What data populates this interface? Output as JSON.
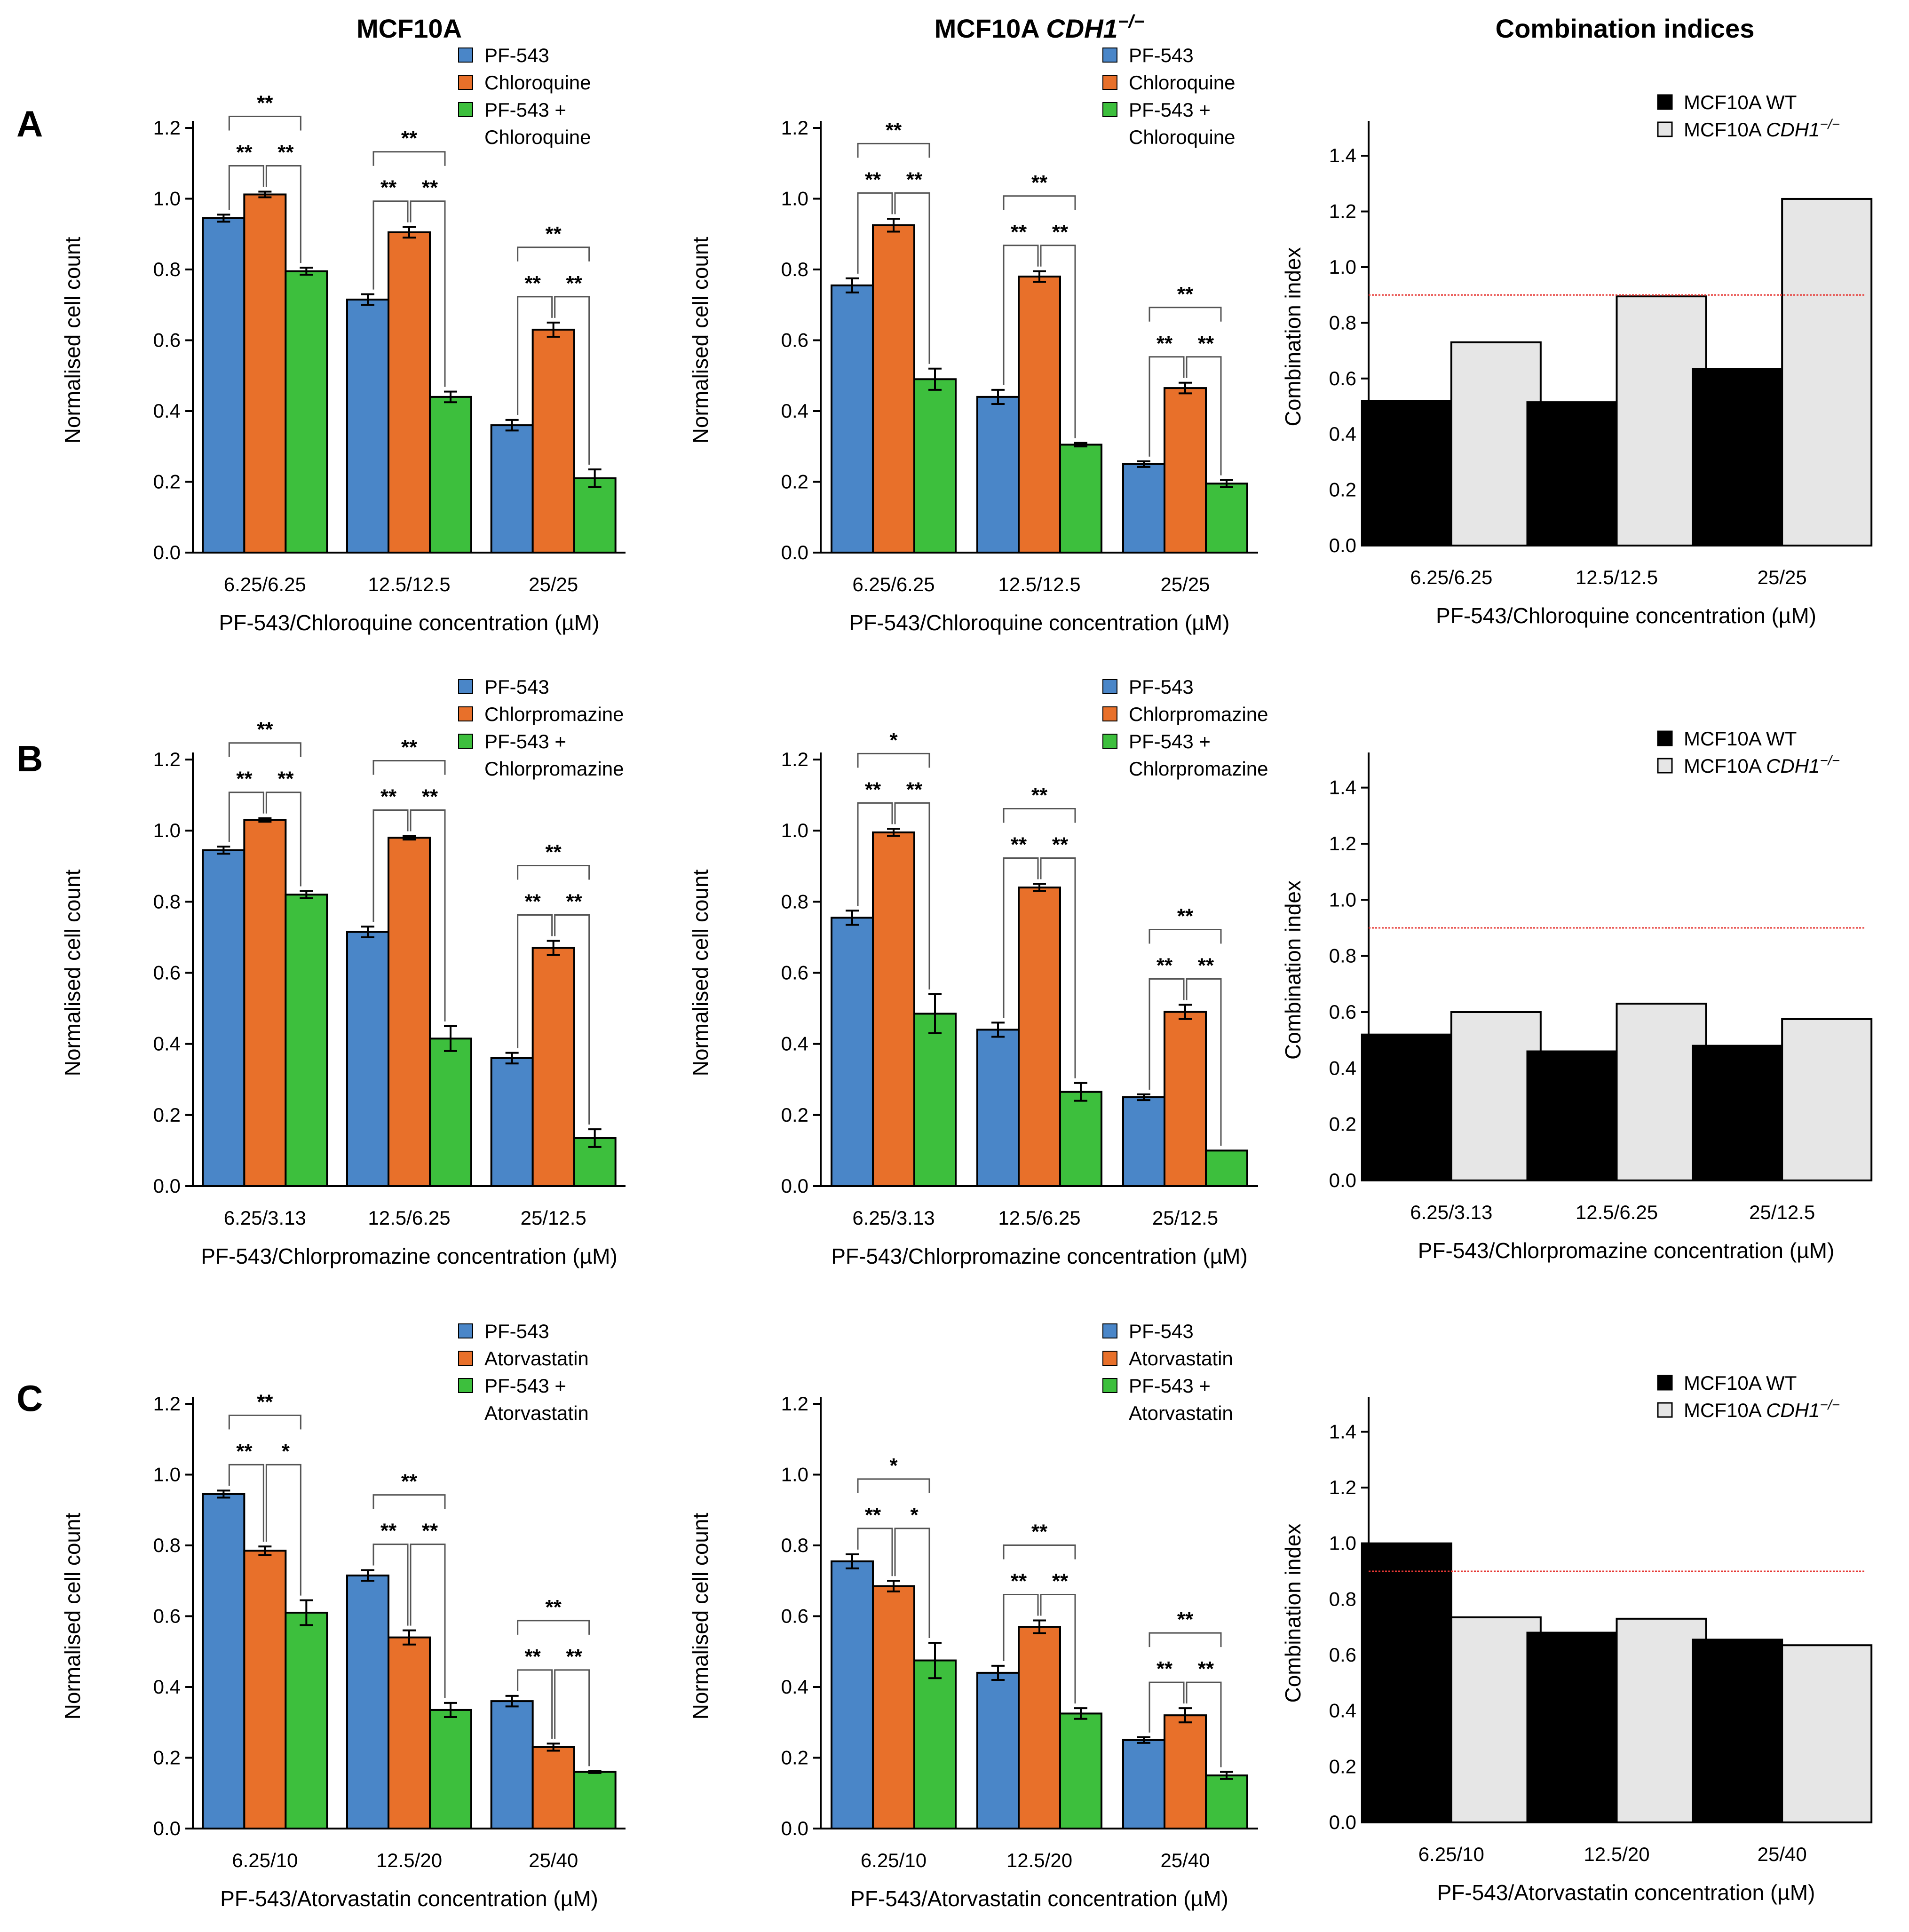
{
  "columns": [
    {
      "title_parts": [
        {
          "text": "MCF10A",
          "italic": false
        }
      ]
    },
    {
      "title_parts": [
        {
          "text": "MCF10A ",
          "italic": false
        },
        {
          "text": "CDH1",
          "italic": true
        },
        {
          "text": "−/−",
          "italic": true,
          "super": true
        }
      ]
    },
    {
      "title_parts": [
        {
          "text": "Combination indices",
          "italic": false
        }
      ]
    }
  ],
  "rows": [
    "A",
    "B",
    "C"
  ],
  "colors": {
    "blue": "#4a86c8",
    "orange": "#e8702a",
    "green": "#3dbf3d",
    "wt": "#000000",
    "ko": "#e6e6e6",
    "threshold": "#e53935"
  },
  "chart_data": [
    {
      "id": "A-WT",
      "type": "bar",
      "ylabel": "Normalised cell count",
      "xlabel": "PF-543/Chloroquine concentration (µM)",
      "categories": [
        "6.25/6.25",
        "12.5/12.5",
        "25/25"
      ],
      "ylim": [
        0,
        1.2
      ],
      "yticks": [
        "0.0",
        "0.2",
        "0.4",
        "0.6",
        "0.8",
        "1.0",
        "1.2"
      ],
      "legend": [
        "PF-543",
        "Chloroquine",
        "PF-543 +",
        "Chloroquine"
      ],
      "series": [
        {
          "name": "PF-543",
          "color": "blue",
          "values": [
            0.945,
            0.715,
            0.36
          ],
          "err": [
            0.01,
            0.015,
            0.015
          ]
        },
        {
          "name": "Chloroquine",
          "color": "orange",
          "values": [
            1.012,
            0.905,
            0.63
          ],
          "err": [
            0.008,
            0.015,
            0.02
          ]
        },
        {
          "name": "PF-543 + Chloroquine",
          "color": "green",
          "values": [
            0.795,
            0.44,
            0.21
          ],
          "err": [
            0.01,
            0.015,
            0.025
          ]
        }
      ],
      "sig": [
        [
          "**",
          "**",
          "**"
        ],
        [
          "**",
          "**",
          "**"
        ],
        [
          "**",
          "**",
          "**"
        ]
      ]
    },
    {
      "id": "A-KO",
      "type": "bar",
      "ylabel": "Normalised cell count",
      "xlabel": "PF-543/Chloroquine concentration (µM)",
      "categories": [
        "6.25/6.25",
        "12.5/12.5",
        "25/25"
      ],
      "ylim": [
        0,
        1.2
      ],
      "yticks": [
        "0.0",
        "0.2",
        "0.4",
        "0.6",
        "0.8",
        "1.0",
        "1.2"
      ],
      "legend": [
        "PF-543",
        "Chloroquine",
        "PF-543 +",
        "Chloroquine"
      ],
      "series": [
        {
          "name": "PF-543",
          "color": "blue",
          "values": [
            0.755,
            0.44,
            0.25
          ],
          "err": [
            0.02,
            0.02,
            0.008
          ]
        },
        {
          "name": "Chloroquine",
          "color": "orange",
          "values": [
            0.925,
            0.78,
            0.465
          ],
          "err": [
            0.018,
            0.015,
            0.015
          ]
        },
        {
          "name": "PF-543 + Chloroquine",
          "color": "green",
          "values": [
            0.49,
            0.305,
            0.195
          ],
          "err": [
            0.03,
            0.005,
            0.01
          ]
        }
      ],
      "sig": [
        [
          "**",
          "**",
          "**"
        ],
        [
          "**",
          "**",
          "**"
        ],
        [
          "**",
          "**",
          "**"
        ]
      ]
    },
    {
      "id": "A-CI",
      "type": "bar",
      "ylabel": "Combination index",
      "xlabel": "PF-543/Chloroquine concentration (µM)",
      "categories": [
        "6.25/6.25",
        "12.5/12.5",
        "25/25"
      ],
      "ylim": [
        0,
        1.5
      ],
      "yticks": [
        "0.0",
        "0.2",
        "0.4",
        "0.6",
        "0.8",
        "1.0",
        "1.2",
        "1.4"
      ],
      "threshold": 0.9,
      "series": [
        {
          "name": "MCF10A WT",
          "color": "wt",
          "values": [
            0.52,
            0.515,
            0.635
          ]
        },
        {
          "name": "MCF10A CDH1−/−",
          "color": "ko",
          "values": [
            0.73,
            0.895,
            1.245
          ]
        }
      ]
    },
    {
      "id": "B-WT",
      "type": "bar",
      "ylabel": "Normalised cell count",
      "xlabel": "PF-543/Chlorpromazine concentration (µM)",
      "categories": [
        "6.25/3.13",
        "12.5/6.25",
        "25/12.5"
      ],
      "ylim": [
        0,
        1.2
      ],
      "yticks": [
        "0.0",
        "0.2",
        "0.4",
        "0.6",
        "0.8",
        "1.0",
        "1.2"
      ],
      "legend": [
        "PF-543",
        "Chlorpromazine",
        "PF-543 +",
        "Chlorpromazine"
      ],
      "series": [
        {
          "name": "PF-543",
          "color": "blue",
          "values": [
            0.945,
            0.715,
            0.36
          ],
          "err": [
            0.01,
            0.015,
            0.015
          ]
        },
        {
          "name": "Chlorpromazine",
          "color": "orange",
          "values": [
            1.03,
            0.98,
            0.67
          ],
          "err": [
            0.005,
            0.005,
            0.02
          ]
        },
        {
          "name": "PF-543 + Chlorpromazine",
          "color": "green",
          "values": [
            0.82,
            0.415,
            0.135
          ],
          "err": [
            0.01,
            0.035,
            0.025
          ]
        }
      ],
      "sig": [
        [
          "**",
          "**",
          "**"
        ],
        [
          "**",
          "**",
          "**"
        ],
        [
          "**",
          "**",
          "**"
        ]
      ]
    },
    {
      "id": "B-KO",
      "type": "bar",
      "ylabel": "Normalised cell count",
      "xlabel": "PF-543/Chlorpromazine concentration (µM)",
      "categories": [
        "6.25/3.13",
        "12.5/6.25",
        "25/12.5"
      ],
      "ylim": [
        0,
        1.2
      ],
      "yticks": [
        "0.0",
        "0.2",
        "0.4",
        "0.6",
        "0.8",
        "1.0",
        "1.2"
      ],
      "legend": [
        "PF-543",
        "Chlorpromazine",
        "PF-543 +",
        "Chlorpromazine"
      ],
      "series": [
        {
          "name": "PF-543",
          "color": "blue",
          "values": [
            0.755,
            0.44,
            0.25
          ],
          "err": [
            0.02,
            0.02,
            0.008
          ]
        },
        {
          "name": "Chlorpromazine",
          "color": "orange",
          "values": [
            0.995,
            0.84,
            0.49
          ],
          "err": [
            0.01,
            0.01,
            0.02
          ]
        },
        {
          "name": "PF-543 + Chlorpromazine",
          "color": "green",
          "values": [
            0.485,
            0.265,
            0.1
          ],
          "err": [
            0.055,
            0.025,
            0.0
          ]
        }
      ],
      "sig": [
        [
          "**",
          "**",
          "*"
        ],
        [
          "**",
          "**",
          "**"
        ],
        [
          "**",
          "**",
          "**"
        ]
      ]
    },
    {
      "id": "B-CI",
      "type": "bar",
      "ylabel": "Combination index",
      "xlabel": "PF-543/Chlorpromazine concentration (µM)",
      "categories": [
        "6.25/3.13",
        "12.5/6.25",
        "25/12.5"
      ],
      "ylim": [
        0,
        1.5
      ],
      "yticks": [
        "0.0",
        "0.2",
        "0.4",
        "0.6",
        "0.8",
        "1.0",
        "1.2",
        "1.4"
      ],
      "threshold": 0.9,
      "series": [
        {
          "name": "MCF10A WT",
          "color": "wt",
          "values": [
            0.52,
            0.46,
            0.48
          ]
        },
        {
          "name": "MCF10A CDH1−/−",
          "color": "ko",
          "values": [
            0.6,
            0.63,
            0.575
          ]
        }
      ]
    },
    {
      "id": "C-WT",
      "type": "bar",
      "ylabel": "Normalised cell count",
      "xlabel": "PF-543/Atorvastatin concentration (µM)",
      "categories": [
        "6.25/10",
        "12.5/20",
        "25/40"
      ],
      "ylim": [
        0,
        1.2
      ],
      "yticks": [
        "0.0",
        "0.2",
        "0.4",
        "0.6",
        "0.8",
        "1.0",
        "1.2"
      ],
      "legend": [
        "PF-543",
        "Atorvastatin",
        "PF-543 +",
        "Atorvastatin"
      ],
      "series": [
        {
          "name": "PF-543",
          "color": "blue",
          "values": [
            0.945,
            0.715,
            0.36
          ],
          "err": [
            0.01,
            0.015,
            0.015
          ]
        },
        {
          "name": "Atorvastatin",
          "color": "orange",
          "values": [
            0.785,
            0.54,
            0.23
          ],
          "err": [
            0.012,
            0.02,
            0.01
          ]
        },
        {
          "name": "PF-543 + Atorvastatin",
          "color": "green",
          "values": [
            0.61,
            0.335,
            0.16
          ],
          "err": [
            0.035,
            0.02,
            0.003
          ]
        }
      ],
      "sig": [
        [
          "**",
          "*",
          "**"
        ],
        [
          "**",
          "**",
          "**"
        ],
        [
          "**",
          "**",
          "**"
        ]
      ]
    },
    {
      "id": "C-KO",
      "type": "bar",
      "ylabel": "Normalised cell count",
      "xlabel": "PF-543/Atorvastatin concentration (µM)",
      "categories": [
        "6.25/10",
        "12.5/20",
        "25/40"
      ],
      "ylim": [
        0,
        1.2
      ],
      "yticks": [
        "0.0",
        "0.2",
        "0.4",
        "0.6",
        "0.8",
        "1.0",
        "1.2"
      ],
      "legend": [
        "PF-543",
        "Atorvastatin",
        "PF-543 +",
        "Atorvastatin"
      ],
      "series": [
        {
          "name": "PF-543",
          "color": "blue",
          "values": [
            0.755,
            0.44,
            0.25
          ],
          "err": [
            0.02,
            0.02,
            0.008
          ]
        },
        {
          "name": "Atorvastatin",
          "color": "orange",
          "values": [
            0.685,
            0.57,
            0.32
          ],
          "err": [
            0.015,
            0.018,
            0.02
          ]
        },
        {
          "name": "PF-543 + Atorvastatin",
          "color": "green",
          "values": [
            0.475,
            0.325,
            0.15
          ],
          "err": [
            0.05,
            0.015,
            0.01
          ]
        }
      ],
      "sig": [
        [
          "**",
          "*",
          "*"
        ],
        [
          "**",
          "**",
          "**"
        ],
        [
          "**",
          "**",
          "**"
        ]
      ]
    },
    {
      "id": "C-CI",
      "type": "bar",
      "ylabel": "Combination index",
      "xlabel": "PF-543/Atorvastatin concentration (µM)",
      "categories": [
        "6.25/10",
        "12.5/20",
        "25/40"
      ],
      "ylim": [
        0,
        1.5
      ],
      "yticks": [
        "0.0",
        "0.2",
        "0.4",
        "0.6",
        "0.8",
        "1.0",
        "1.2",
        "1.4"
      ],
      "threshold": 0.9,
      "series": [
        {
          "name": "MCF10A WT",
          "color": "wt",
          "values": [
            1.0,
            0.68,
            0.655
          ]
        },
        {
          "name": "MCF10A CDH1−/−",
          "color": "ko",
          "values": [
            0.735,
            0.73,
            0.635
          ]
        }
      ]
    }
  ],
  "ci_legend": [
    {
      "parts": [
        {
          "text": "MCF10A WT",
          "italic": false
        }
      ]
    },
    {
      "parts": [
        {
          "text": "MCF10A ",
          "italic": false
        },
        {
          "text": "CDH1",
          "italic": true
        },
        {
          "text": "−/−",
          "italic": true,
          "super": true
        }
      ]
    }
  ]
}
